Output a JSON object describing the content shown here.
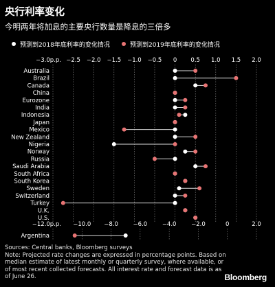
{
  "title": "央行利率变化",
  "subtitle": "今明两年将加息的主要央行数量是降息的三倍多",
  "colors": {
    "background": "#000000",
    "dot2018": "#ffffff",
    "dot2019": "#e87474",
    "connector": "#dcdcdc",
    "grid": "#8a8a8a",
    "text": "#ffffff"
  },
  "chart_data": [
    {
      "type": "scatter",
      "legend": [
        "预测到2018年底利率的变化情况",
        "预测到2019年底利率的变化情况"
      ],
      "xlim": [
        -3.0,
        2.0
      ],
      "xticks": [
        -3.0,
        -2.5,
        -2.0,
        -1.5,
        -1.0,
        -0.5,
        0,
        0.5,
        1.0,
        1.5,
        2.0
      ],
      "xtick_labels": [
        "−3.0p.p.",
        "−2.5",
        "−2.0",
        "−1.5",
        "−1.0",
        "−0.5",
        "0",
        "0.5",
        "1.0",
        "1.5",
        "2.0"
      ],
      "rows": [
        {
          "label": "Australia",
          "y2018": 0.0,
          "y2019": 0.5
        },
        {
          "label": "Brazil",
          "y2018": 0.0,
          "y2019": 1.5
        },
        {
          "label": "Canada",
          "y2018": 0.5,
          "y2019": 0.75
        },
        {
          "label": "China",
          "y2018": 0.0,
          "y2019": 0.0
        },
        {
          "label": "Eurozone",
          "y2018": 0.0,
          "y2019": 0.25
        },
        {
          "label": "India",
          "y2018": 0.0,
          "y2019": 0.25
        },
        {
          "label": "Indonesia",
          "y2018": 0.25,
          "y2019": 0.1
        },
        {
          "label": "Japan",
          "y2018": 0.0,
          "y2019": 0.0
        },
        {
          "label": "Mexico",
          "y2018": 0.0,
          "y2019": -1.25
        },
        {
          "label": "New Zealand",
          "y2018": 0.0,
          "y2019": 0.5
        },
        {
          "label": "Nigeria",
          "y2018": -1.5,
          "y2019": 0.0
        },
        {
          "label": "Norway",
          "y2018": 0.25,
          "y2019": 0.5
        },
        {
          "label": "Russia",
          "y2018": 0.0,
          "y2019": -0.5
        },
        {
          "label": "Saudi Arabia",
          "y2018": 0.5,
          "y2019": 0.75
        },
        {
          "label": "South Africa",
          "y2018": 0.0,
          "y2019": 0.0
        },
        {
          "label": "South Korea",
          "y2018": 0.25,
          "y2019": 0.25
        },
        {
          "label": "Sweden",
          "y2018": 0.1,
          "y2019": 0.6
        },
        {
          "label": "Switzerland",
          "y2018": 0.0,
          "y2019": 0.25
        },
        {
          "label": "Turkey",
          "y2018": 0.0,
          "y2019": -2.75
        },
        {
          "label": "U.K.",
          "y2018": 0.25,
          "y2019": 0.25
        },
        {
          "label": "U.S.",
          "y2018": 0.5,
          "y2019": 0.5
        }
      ]
    },
    {
      "type": "scatter",
      "xlim": [
        -12.0,
        2.0
      ],
      "xticks": [
        -12.0,
        -10.0,
        -8.0,
        -6.0,
        -4.0,
        -2.0,
        0,
        2.0
      ],
      "xtick_labels": [
        "−12.0p.p.",
        "−10.0",
        "−8.0",
        "−6.0",
        "−4.0",
        "−2.0",
        "0",
        "2.0"
      ],
      "rows": [
        {
          "label": "Argentina",
          "y2018": -7.0,
          "y2019": -10.5
        }
      ]
    }
  ],
  "footer": {
    "sources": "Sources: Central banks, Bloomberg surveys",
    "note_lines": [
      "Note: Projected rate changes are expressed in percentage points. Based on",
      "median estimate of latest monthly or quarterly survey, where available, or",
      "of most recent collected forecasts. All interest rate and forecast data is as",
      "of June 26."
    ]
  },
  "brand": "Bloomberg"
}
